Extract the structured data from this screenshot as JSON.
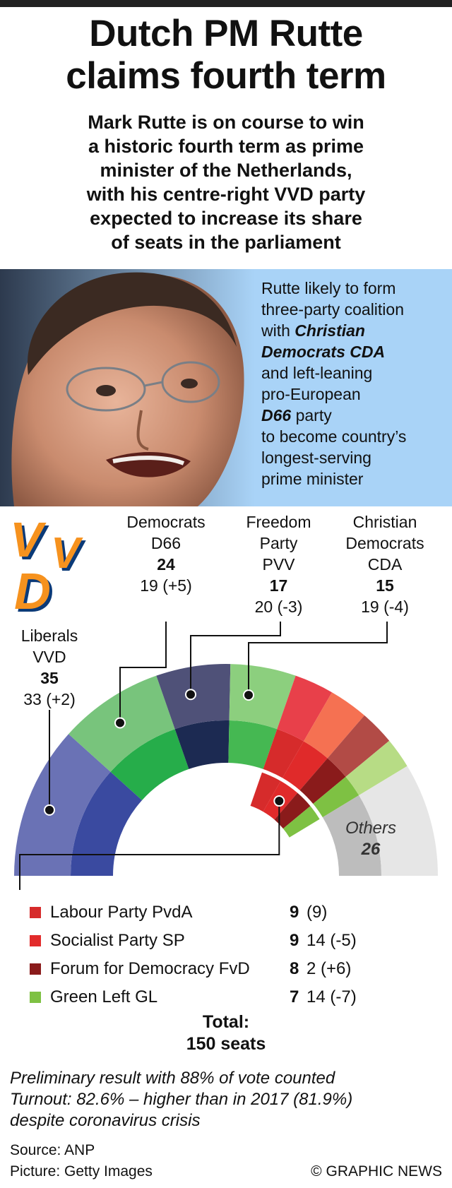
{
  "header": {
    "title_line1": "Dutch PM Rutte",
    "title_line2": "claims fourth term",
    "subtitle_lines": [
      "Mark Rutte is on course to win",
      "a historic fourth term as prime",
      "minister of the Netherlands,",
      "with his centre-right VVD party",
      "expected to increase its share",
      "of seats in the parliament"
    ]
  },
  "callout": {
    "line1": "Rutte likely to form",
    "line2": "three-party coalition",
    "line3_pre": "with ",
    "line3_em": "Christian",
    "line4_em": "Democrats CDA",
    "line5": "and left-leaning",
    "line6": "pro-European",
    "line7_em": "D66",
    "line7_post": " party",
    "line8": "to become country’s",
    "line9": "longest-serving",
    "line10": "prime minister"
  },
  "logo": {
    "text": "VVD",
    "colors": {
      "orange": "#f6921e",
      "blue": "#0b3a78"
    }
  },
  "chart_data": {
    "type": "pie",
    "title": "",
    "total_label": "Total:",
    "total_value": "150 seats",
    "parties": [
      {
        "name": "Liberals",
        "abbr": "VVD",
        "seats": 35,
        "previous": "33 (+2)",
        "color_outer": "#6a72b5",
        "color_inner": "#3a4aa0"
      },
      {
        "name": "Democrats",
        "abbr": "D66",
        "seats": 24,
        "previous": "19 (+5)",
        "color_outer": "#78c47c",
        "color_inner": "#26ad4a"
      },
      {
        "name": "Freedom Party",
        "abbr": "PVV",
        "seats": 17,
        "previous": "20 (-3)",
        "color_outer": "#4f5178",
        "color_inner": "#1c2a52"
      },
      {
        "name": "Christian Democrats",
        "abbr": "CDA",
        "seats": 15,
        "previous": "19 (-4)",
        "color_outer": "#8ccf7e",
        "color_inner": "#45b852"
      },
      {
        "name": "Labour Party",
        "abbr": "PvdA",
        "seats": 9,
        "previous": "(9)",
        "color_outer": "#e8404a",
        "color_inner": "#d62b2b"
      },
      {
        "name": "Socialist Party",
        "abbr": "SP",
        "seats": 9,
        "previous": "14 (-5)",
        "color_outer": "#f57152",
        "color_inner": "#e02a2a"
      },
      {
        "name": "Forum for Democracy",
        "abbr": "FvD",
        "seats": 8,
        "previous": "2 (+6)",
        "color_outer": "#b24b46",
        "color_inner": "#8a1b1b"
      },
      {
        "name": "Green Left",
        "abbr": "GL",
        "seats": 7,
        "previous": "14 (-7)",
        "color_outer": "#b7dc85",
        "color_inner": "#7ec143"
      },
      {
        "name": "Others",
        "abbr": "",
        "seats": 26,
        "previous": "",
        "color_outer": "#e6e6e6",
        "color_inner": "#bdbdbd"
      }
    ],
    "legend": [
      {
        "label": "Labour Party PvdA",
        "value": "9",
        "previous": "(9)",
        "color": "#d62b2b"
      },
      {
        "label": "Socialist Party SP",
        "value": "9",
        "previous": "14 (-5)",
        "color": "#e22b2b"
      },
      {
        "label": "Forum for Democracy FvD",
        "value": "8",
        "previous": "2 (+6)",
        "color": "#8a1b1b"
      },
      {
        "label": "Green Left GL",
        "value": "7",
        "previous": "14 (-7)",
        "color": "#7ec143"
      }
    ],
    "others_label": "Others",
    "others_value": "26"
  },
  "footer": {
    "note_line1": "Preliminary result with 88% of vote counted",
    "note_line2": "Turnout: 82.6% – higher than in 2017 (81.9%)",
    "note_line3": "despite coronavirus crisis",
    "source": "Source: ANP",
    "picture": "Picture: Getty Images",
    "brand": "© GRAPHIC NEWS"
  }
}
